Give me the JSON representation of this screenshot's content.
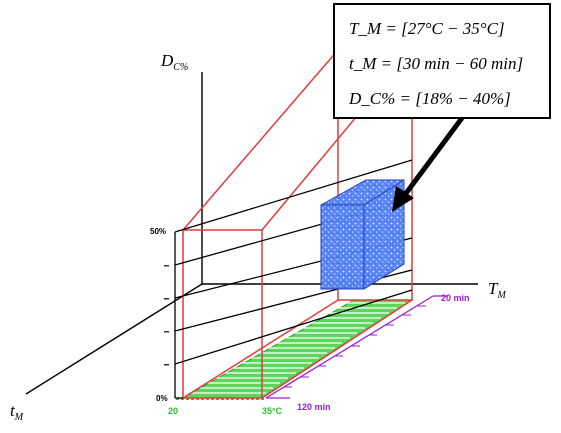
{
  "axes": {
    "y_label_main": "D",
    "y_label_sub": "C%",
    "x_label_main": "T",
    "x_label_sub": "M",
    "z_label_main": "t",
    "z_label_sub": "M"
  },
  "ticks": {
    "top": "50%",
    "bottom": "0%",
    "temp_start": "20",
    "temp_end": "35°C",
    "time_start": "20 min",
    "time_end": "120 min"
  },
  "callout": {
    "line1": "T_M = [27°C − 35°C]",
    "line2": "t_M = [30 min − 60 min]",
    "line3": "D_C% = [18% − 40%]"
  },
  "colors": {
    "frame": "#e23b3b",
    "box": "#3a6cf0",
    "floor": "#33cc33",
    "time_axis": "#9a1fd1"
  }
}
